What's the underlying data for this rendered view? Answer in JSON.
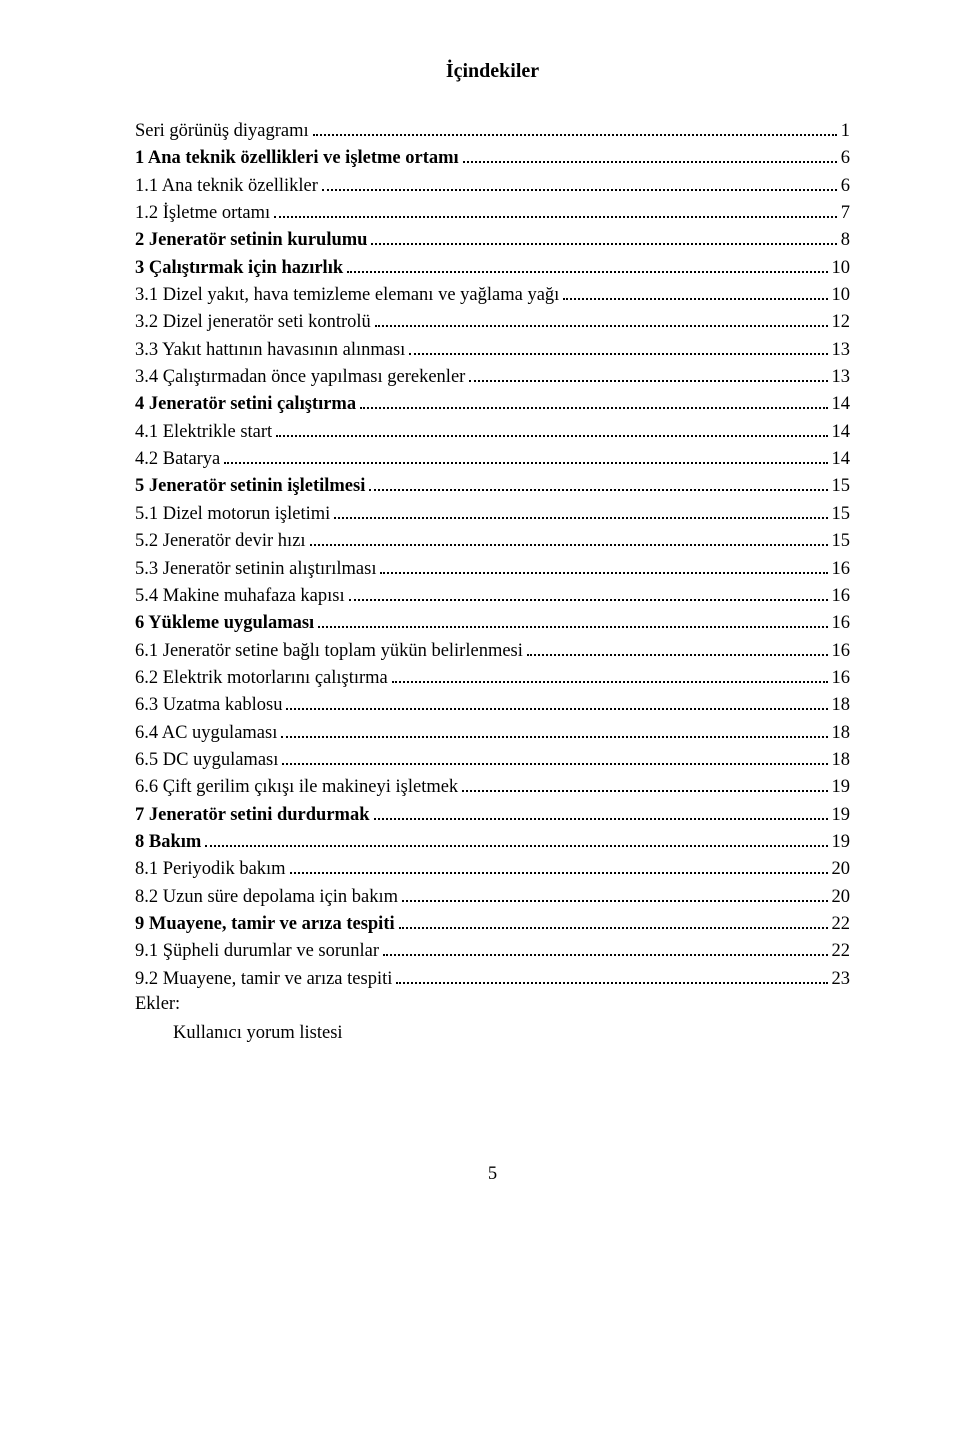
{
  "title": "İçindekiler",
  "toc": [
    {
      "label": "Seri görünüş diyagramı",
      "page": "1",
      "bold": false
    },
    {
      "label": "1 Ana teknik özellikleri ve işletme ortamı",
      "page": "6",
      "bold": true
    },
    {
      "label": "1.1 Ana teknik özellikler",
      "page": "6",
      "bold": false
    },
    {
      "label": "1.2 İşletme ortamı",
      "page": "7",
      "bold": false
    },
    {
      "label": "2 Jeneratör setinin kurulumu",
      "page": "8",
      "bold": true
    },
    {
      "label": "3 Çalıştırmak için hazırlık",
      "page": "10",
      "bold": true
    },
    {
      "label": "3.1 Dizel yakıt, hava temizleme elemanı ve yağlama yağı",
      "page": "10",
      "bold": false
    },
    {
      "label": "3.2 Dizel jeneratör seti kontrolü",
      "page": "12",
      "bold": false
    },
    {
      "label": "3.3 Yakıt hattının havasının alınması",
      "page": "13",
      "bold": false
    },
    {
      "label": "3.4 Çalıştırmadan önce yapılması gerekenler",
      "page": "13",
      "bold": false
    },
    {
      "label": "4 Jeneratör setini çalıştırma",
      "page": "14",
      "bold": true
    },
    {
      "label": "4.1 Elektrikle start",
      "page": "14",
      "bold": false
    },
    {
      "label": "4.2 Batarya",
      "page": "14",
      "bold": false
    },
    {
      "label": "5 Jeneratör setinin işletilmesi",
      "page": "15",
      "bold": true
    },
    {
      "label": "5.1 Dizel motorun işletimi",
      "page": "15",
      "bold": false
    },
    {
      "label": "5.2 Jeneratör devir hızı",
      "page": "15",
      "bold": false
    },
    {
      "label": "5.3 Jeneratör setinin alıştırılması",
      "page": "16",
      "bold": false
    },
    {
      "label": "5.4 Makine muhafaza kapısı",
      "page": "16",
      "bold": false
    },
    {
      "label": "6 Yükleme uygulaması",
      "page": "16",
      "bold": true
    },
    {
      "label": "6.1 Jeneratör setine bağlı toplam yükün belirlenmesi",
      "page": "16",
      "bold": false
    },
    {
      "label": "6.2 Elektrik motorlarını çalıştırma",
      "page": "16",
      "bold": false
    },
    {
      "label": "6.3 Uzatma kablosu",
      "page": "18",
      "bold": false
    },
    {
      "label": "6.4 AC uygulaması",
      "page": "18",
      "bold": false
    },
    {
      "label": "6.5 DC uygulaması",
      "page": "18",
      "bold": false
    },
    {
      "label": "6.6 Çift gerilim çıkışı ile makineyi işletmek",
      "page": "19",
      "bold": false
    },
    {
      "label": "7 Jeneratör setini durdurmak",
      "page": "19",
      "bold": true
    },
    {
      "label": "8 Bakım",
      "page": "19",
      "bold": true
    },
    {
      "label": "8.1 Periyodik bakım",
      "page": "20",
      "bold": false
    },
    {
      "label": "8.2 Uzun süre depolama için bakım",
      "page": "20",
      "bold": false
    },
    {
      "label": "9 Muayene, tamir ve arıza tespiti",
      "page": "22",
      "bold": true
    },
    {
      "label": "9.1 Şüpheli durumlar ve sorunlar",
      "page": "22",
      "bold": false
    },
    {
      "label": "9.2 Muayene, tamir ve arıza tespiti",
      "page": "23",
      "bold": false
    }
  ],
  "appendix": {
    "heading": "Ekler:",
    "item": "Kullanıcı yorum listesi"
  },
  "page_number": "5"
}
